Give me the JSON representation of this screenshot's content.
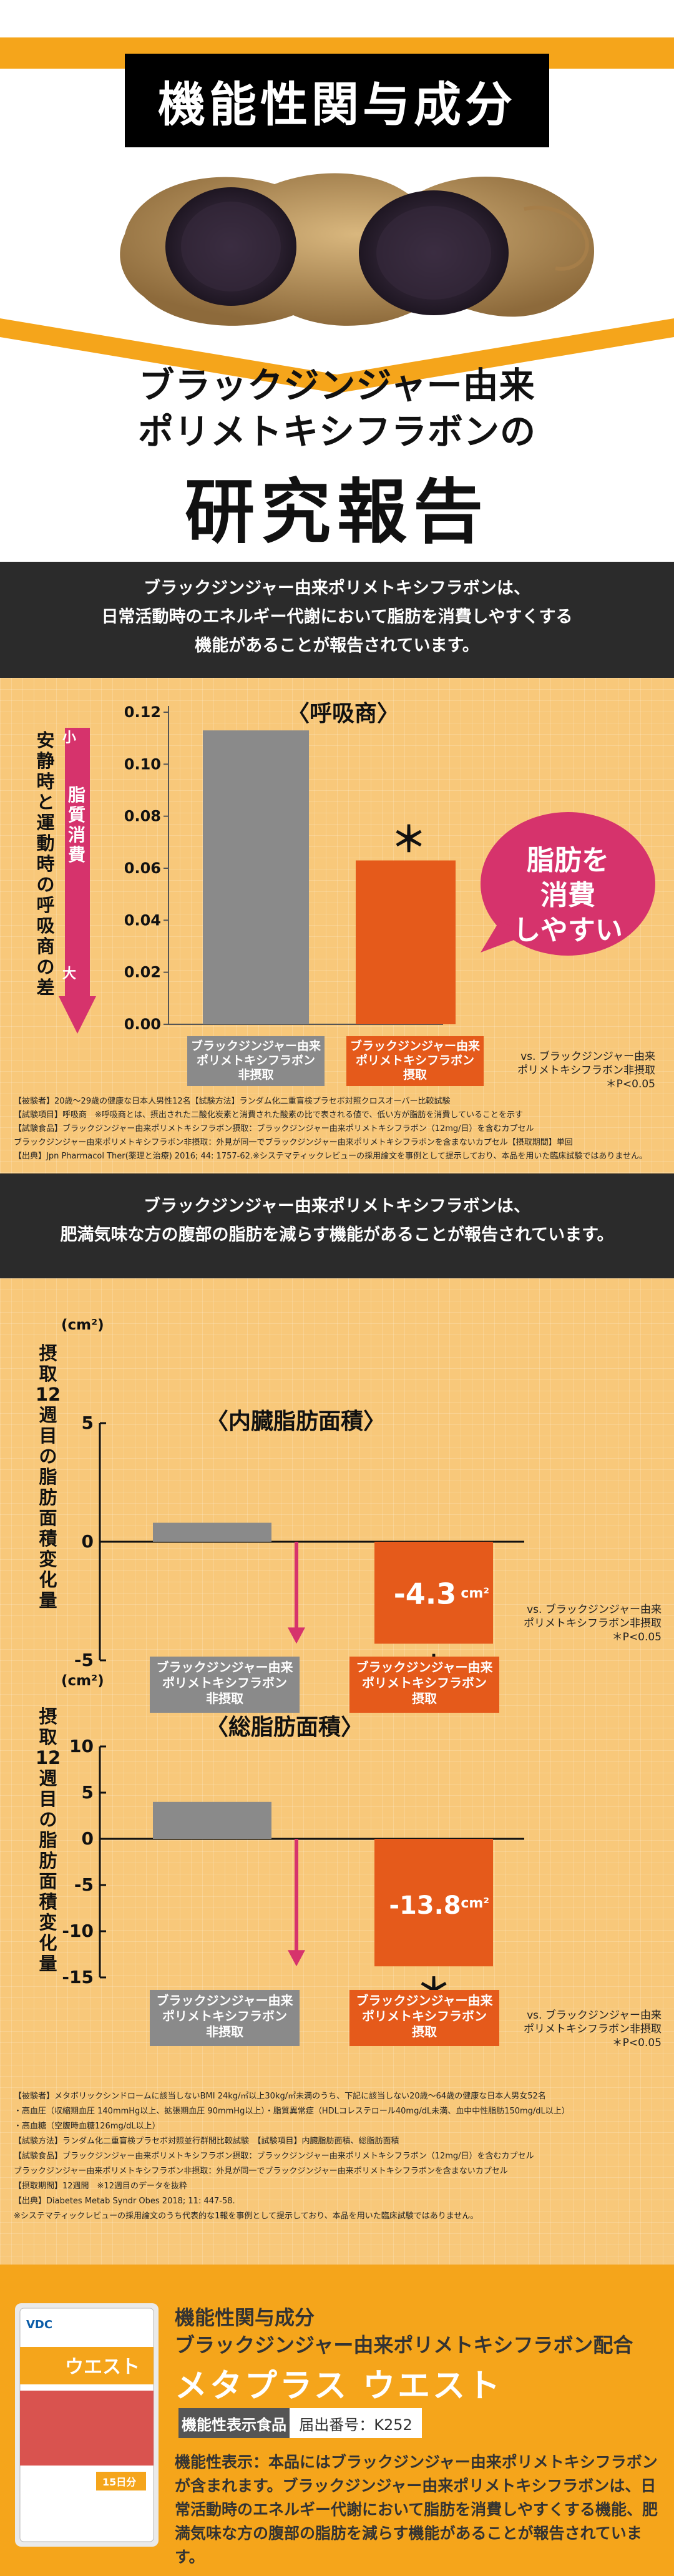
{
  "hero": {
    "title": "機能性関与成分",
    "sub1": "ブラックジンジャー由来",
    "sub2": "ポリメトキシフラボンの",
    "main": "研究報告"
  },
  "intro1": {
    "lines": [
      "ブラックジンジャー由来ポリメトキシフラボンは、",
      "日常活動時のエネルギー代謝において脂肪を消費しやすくする",
      "機能があることが報告されています。"
    ]
  },
  "panel1": {
    "arrow_small": "小",
    "arrow_large": "大",
    "arrow_mid": "脂質消費",
    "ylabel": "安静時と運動時の呼吸商の差",
    "burst": [
      "脂肪を",
      "消費",
      "しやすい"
    ],
    "vs_note": [
      "vs. ブラックジンジャー由来",
      "ポリメトキシフラボン非摂取",
      "＊P<0.05"
    ],
    "fine": [
      "【被験者】20歳〜29歳の健康な日本人男性12名【試験方法】ランダム化二重盲検プラセボ対照クロスオーバー比較試験",
      "【試験項目】呼吸商　※呼吸商とは、摂出された二酸化炭素と消費された酸素の比で表される値で、低い方が脂肪を消費していることを示す",
      "【試験食品】ブラックジンジャー由来ポリメトキシフラボン摂取：ブラックジンジャー由来ポリメトキシフラボン（12mg/日）を含むカプセル",
      "ブラックジンジャー由来ポリメトキシフラボン非摂取：外見が同一でブラックジンジャー由来ポリメトキシフラボンを含まないカプセル【摂取期間】単回",
      "【出典】Jpn Pharmacol Ther(薬理と治療) 2016; 44: 1757-62.※システマティックレビューの採用論文を事例として提示しており、本品を用いた臨床試験ではありません。"
    ]
  },
  "intro2": {
    "lines": [
      "ブラックジンジャー由来ポリメトキシフラボンは、",
      "肥満気味な方の腹部の脂肪を減らす機能があることが報告されています。"
    ]
  },
  "panel2": {
    "unit": "(cm²)",
    "ylabel": "摂取12週目の脂肪面積変化量",
    "vs_note": [
      "vs. ブラックジンジャー由来",
      "ポリメトキシフラボン非摂取",
      "＊P<0.05"
    ],
    "fine": [
      "【被験者】メタボリックシンドロームに該当しないBMI 24kg/㎡以上30kg/㎡未満のうち、下記に該当しない20歳〜64歳の健康な日本人男女52名",
      "・高血圧（収縮期血圧 140mmHg以上、拡張期血圧 90mmHg以上）・脂質異常症（HDLコレステロール40mg/dL未満、血中中性脂肪150mg/dL以上）",
      "・高血糖（空腹時血糖126mg/dL以上）",
      "【試験方法】ランダム化二重盲検プラセボ対照並行群間比較試験　【試験項目】内臓脂肪面積、総脂肪面積",
      "【試験食品】ブラックジンジャー由来ポリメトキシフラボン摂取：ブラックジンジャー由来ポリメトキシフラボン（12mg/日）を含むカプセル",
      "ブラックジンジャー由来ポリメトキシフラボン非摂取：外見が同一でブラックジンジャー由来ポリメトキシフラボンを含まないカプセル",
      "【摂取期間】12週間　※12週目のデータを抜粋",
      "【出典】Diabetes Metab Syndr Obes 2018; 11: 447-58.",
      "※システマティックレビューの採用論文のうち代表的な1報を事例として提示しており、本品を用いた臨床試験ではありません。"
    ]
  },
  "footer": {
    "line1": "機能性関与成分",
    "line2": "ブラックジンジャー由来ポリメトキシフラボン配合",
    "name": "メタプラス ウエスト",
    "badge_label": "機能性表示食品",
    "badge_number": "届出番号：K252",
    "desc": "機能性表示：本品にはブラックジンジャー由来ポリメトキシフラボンが含まれます。ブラックジンジャー由来ポリメトキシフラボンは、日常活動時のエネルギー代謝において脂肪を消費しやすくする機能、肥満気味な方の腹部の脂肪を減らす機能があることが報告されています。",
    "pkg_brand": "VDC",
    "pkg_name": "ウエスト",
    "pkg_days": "15日分"
  },
  "chart_data": [
    {
      "type": "bar",
      "title": "〈呼吸商〉",
      "categories": [
        "ブラックジンジャー由来\nポリメトキシフラボン\n非摂取",
        "ブラックジンジャー由来\nポリメトキシフラボン\n摂取"
      ],
      "values": [
        0.113,
        0.063
      ],
      "ylim": [
        0,
        0.12
      ],
      "yticks": [
        "0.00",
        "0.02",
        "0.04",
        "0.06",
        "0.08",
        "0.10",
        "0.12"
      ],
      "annotations": [
        "＊"
      ],
      "colors": [
        "#8a8a8a",
        "#e55a1b"
      ]
    },
    {
      "type": "bar",
      "title": "〈内臓脂肪面積〉",
      "categories": [
        "ブラックジンジャー由来\nポリメトキシフラボン\n非摂取",
        "ブラックジンジャー由来\nポリメトキシフラボン\n摂取"
      ],
      "values": [
        0.8,
        -4.3
      ],
      "value_label": "-4.3",
      "value_unit": "cm²",
      "ylim": [
        -5,
        5
      ],
      "yticks": [
        "5",
        "0",
        "-5"
      ],
      "annotations": [
        "＊"
      ],
      "colors": [
        "#8a8a8a",
        "#e55a1b"
      ]
    },
    {
      "type": "bar",
      "title": "〈総脂肪面積〉",
      "categories": [
        "ブラックジンジャー由来\nポリメトキシフラボン\n非摂取",
        "ブラックジンジャー由来\nポリメトキシフラボン\n摂取"
      ],
      "values": [
        4.0,
        -13.8
      ],
      "value_label": "-13.8",
      "value_unit": "cm²",
      "ylim": [
        -15,
        10
      ],
      "yticks": [
        "10",
        "5",
        "0",
        "-5",
        "-10",
        "-15"
      ],
      "annotations": [
        "＊"
      ],
      "colors": [
        "#8a8a8a",
        "#e55a1b"
      ]
    }
  ]
}
